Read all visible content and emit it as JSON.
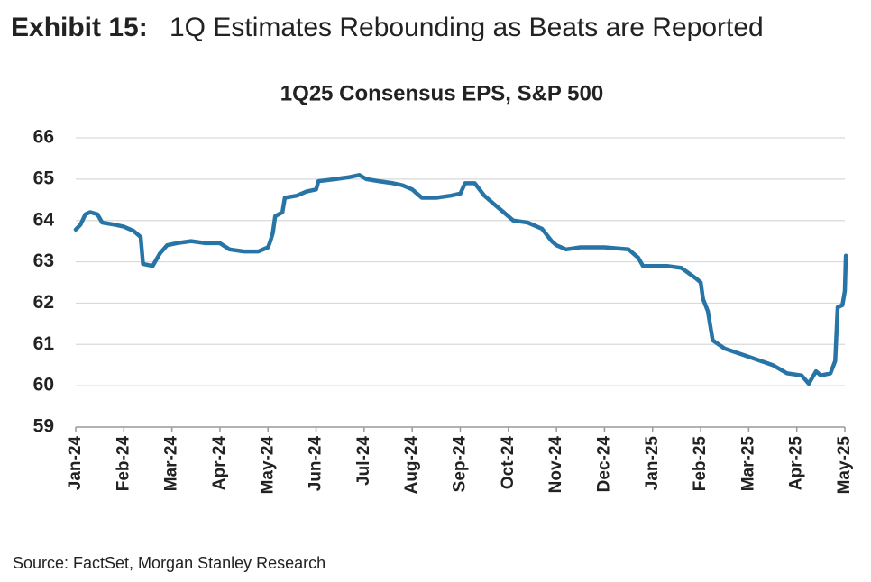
{
  "header": {
    "label": "Exhibit 15:",
    "title": "1Q Estimates Rebounding as Beats are Reported"
  },
  "source": "Source: FactSet, Morgan Stanley Research",
  "chart_data": {
    "type": "line",
    "title": "1Q25 Consensus EPS, S&P 500",
    "x": [
      0,
      0.1,
      0.2,
      0.3,
      0.45,
      0.55,
      0.8,
      1.0,
      1.2,
      1.35,
      1.4,
      1.6,
      1.75,
      1.9,
      2.1,
      2.4,
      2.7,
      3.0,
      3.2,
      3.5,
      3.8,
      4.0,
      4.05,
      4.1,
      4.15,
      4.3,
      4.35,
      4.6,
      4.8,
      5.0,
      5.05,
      5.4,
      5.7,
      5.9,
      6.05,
      6.3,
      6.6,
      6.8,
      7.0,
      7.2,
      7.5,
      7.8,
      8.0,
      8.1,
      8.3,
      8.5,
      8.7,
      8.9,
      9.1,
      9.4,
      9.7,
      9.9,
      10.0,
      10.2,
      10.5,
      11.0,
      11.5,
      11.7,
      11.8,
      12.3,
      12.6,
      12.9,
      13.0,
      13.05,
      13.15,
      13.25,
      13.5,
      14.0,
      14.5,
      14.8,
      15.1,
      15.25,
      15.4,
      15.5,
      15.7,
      15.8,
      15.85,
      15.95,
      16.0,
      16.02
    ],
    "series": [
      {
        "name": "1Q25 Consensus EPS",
        "color": "#2774a6",
        "values": [
          63.78,
          63.9,
          64.15,
          64.2,
          64.15,
          63.95,
          63.9,
          63.85,
          63.75,
          63.6,
          62.95,
          62.9,
          63.2,
          63.4,
          63.45,
          63.5,
          63.45,
          63.45,
          63.3,
          63.25,
          63.25,
          63.35,
          63.5,
          63.7,
          64.1,
          64.2,
          64.55,
          64.6,
          64.7,
          64.75,
          64.95,
          65.0,
          65.05,
          65.1,
          65.0,
          64.95,
          64.9,
          64.85,
          64.75,
          64.55,
          64.55,
          64.6,
          64.65,
          64.9,
          64.9,
          64.6,
          64.4,
          64.2,
          64.0,
          63.95,
          63.8,
          63.5,
          63.4,
          63.3,
          63.35,
          63.35,
          63.3,
          63.1,
          62.9,
          62.9,
          62.85,
          62.6,
          62.5,
          62.1,
          61.8,
          61.1,
          60.9,
          60.7,
          60.5,
          60.3,
          60.25,
          60.05,
          60.35,
          60.25,
          60.3,
          60.6,
          61.9,
          61.95,
          62.3,
          63.15
        ]
      }
    ],
    "xlim": [
      0,
      16
    ],
    "xticks": [
      {
        "value": 0,
        "label": "Jan-24"
      },
      {
        "value": 1,
        "label": "Feb-24"
      },
      {
        "value": 2,
        "label": "Mar-24"
      },
      {
        "value": 3,
        "label": "Apr-24"
      },
      {
        "value": 4,
        "label": "May-24"
      },
      {
        "value": 5,
        "label": "Jun-24"
      },
      {
        "value": 6,
        "label": "Jul-24"
      },
      {
        "value": 7,
        "label": "Aug-24"
      },
      {
        "value": 8,
        "label": "Sep-24"
      },
      {
        "value": 9,
        "label": "Oct-24"
      },
      {
        "value": 10,
        "label": "Nov-24"
      },
      {
        "value": 11,
        "label": "Dec-24"
      },
      {
        "value": 12,
        "label": "Jan-25"
      },
      {
        "value": 13,
        "label": "Feb-25"
      },
      {
        "value": 14,
        "label": "Mar-25"
      },
      {
        "value": 15,
        "label": "Apr-25"
      },
      {
        "value": 16,
        "label": "May-25"
      }
    ],
    "ylim": [
      59,
      66
    ],
    "yticks": [
      59,
      60,
      61,
      62,
      63,
      64,
      65,
      66
    ],
    "grid": true
  }
}
